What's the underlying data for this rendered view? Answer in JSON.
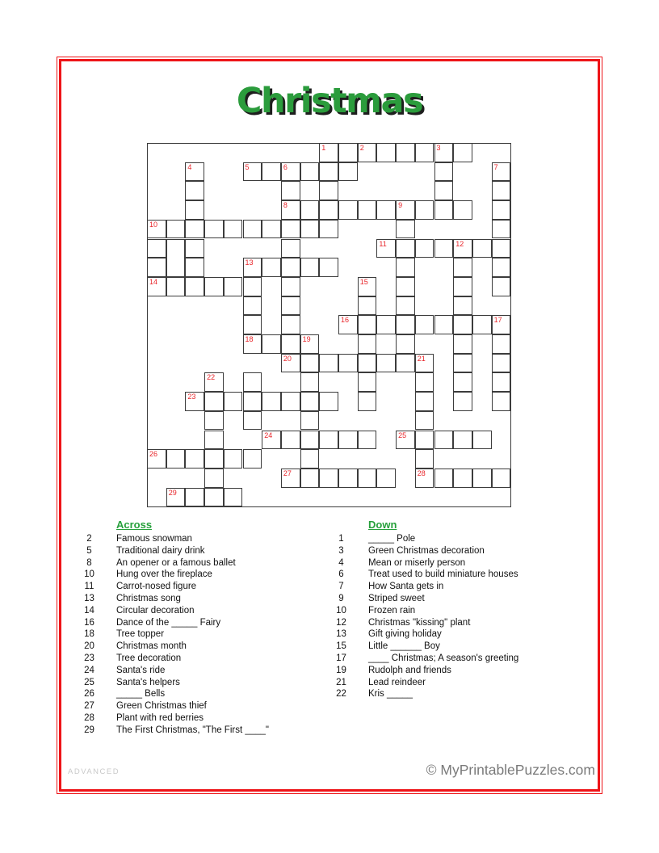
{
  "title": "Christmas",
  "colors": {
    "frame_red": "#ee1418",
    "title_green": "#2b9c3c",
    "heading_green": "#27a03c",
    "number_red": "#e8252a",
    "grid_line": "#3c3c3c",
    "level_gray": "#c9c9c9",
    "copyright_gray": "#7a7a7a"
  },
  "grid": {
    "rows": 19,
    "cols": 19,
    "filled": [
      [
        9,
        10,
        11,
        12,
        13,
        14,
        15,
        16
      ],
      [
        2,
        5,
        6,
        7,
        8,
        9,
        10,
        15,
        18
      ],
      [
        2,
        7,
        9,
        15,
        18
      ],
      [
        2,
        7,
        8,
        9,
        10,
        11,
        12,
        13,
        14,
        15,
        16,
        18
      ],
      [
        0,
        1,
        2,
        3,
        4,
        5,
        6,
        7,
        8,
        9,
        13,
        18
      ],
      [
        0,
        2,
        7,
        12,
        13,
        14,
        15,
        16,
        17,
        18
      ],
      [
        0,
        2,
        5,
        6,
        7,
        8,
        9,
        13,
        16,
        18
      ],
      [
        0,
        1,
        2,
        3,
        4,
        5,
        7,
        11,
        13,
        16,
        18
      ],
      [
        5,
        7,
        11,
        13,
        16
      ],
      [
        5,
        7,
        10,
        11,
        12,
        13,
        14,
        15,
        16,
        17,
        18
      ],
      [
        5,
        6,
        7,
        8,
        11,
        13,
        16,
        18
      ],
      [
        7,
        8,
        9,
        10,
        11,
        12,
        13,
        14,
        16,
        18
      ],
      [
        3,
        5,
        8,
        11,
        14,
        16,
        18
      ],
      [
        2,
        3,
        4,
        5,
        6,
        7,
        8,
        9,
        11,
        14,
        16,
        18
      ],
      [
        3,
        5,
        8,
        14
      ],
      [
        3,
        6,
        7,
        8,
        9,
        10,
        11,
        13,
        14,
        15,
        16,
        17
      ],
      [
        0,
        1,
        2,
        3,
        4,
        5,
        8,
        14
      ],
      [
        3,
        7,
        8,
        9,
        10,
        11,
        12,
        14,
        15,
        16,
        17,
        18
      ],
      [
        1,
        2,
        3,
        4
      ]
    ],
    "merged": [
      {
        "r": 5,
        "c": 1,
        "rowspan": 2
      }
    ],
    "numbers": [
      {
        "n": "1",
        "r": 0,
        "c": 9
      },
      {
        "n": "2",
        "r": 0,
        "c": 11
      },
      {
        "n": "3",
        "r": 0,
        "c": 15
      },
      {
        "n": "4",
        "r": 1,
        "c": 2
      },
      {
        "n": "5",
        "r": 1,
        "c": 5
      },
      {
        "n": "6",
        "r": 1,
        "c": 7
      },
      {
        "n": "7",
        "r": 1,
        "c": 18
      },
      {
        "n": "8",
        "r": 3,
        "c": 7
      },
      {
        "n": "9",
        "r": 3,
        "c": 13
      },
      {
        "n": "10",
        "r": 4,
        "c": 0
      },
      {
        "n": "11",
        "r": 5,
        "c": 12
      },
      {
        "n": "12",
        "r": 5,
        "c": 16
      },
      {
        "n": "13",
        "r": 6,
        "c": 5
      },
      {
        "n": "14",
        "r": 7,
        "c": 0
      },
      {
        "n": "15",
        "r": 7,
        "c": 11
      },
      {
        "n": "16",
        "r": 9,
        "c": 10
      },
      {
        "n": "17",
        "r": 9,
        "c": 18
      },
      {
        "n": "18",
        "r": 10,
        "c": 5
      },
      {
        "n": "19",
        "r": 10,
        "c": 8
      },
      {
        "n": "20",
        "r": 11,
        "c": 7
      },
      {
        "n": "21",
        "r": 11,
        "c": 14
      },
      {
        "n": "22",
        "r": 12,
        "c": 3
      },
      {
        "n": "23",
        "r": 13,
        "c": 2
      },
      {
        "n": "24",
        "r": 15,
        "c": 6
      },
      {
        "n": "25",
        "r": 15,
        "c": 13
      },
      {
        "n": "26",
        "r": 16,
        "c": 0
      },
      {
        "n": "27",
        "r": 17,
        "c": 7
      },
      {
        "n": "28",
        "r": 17,
        "c": 14
      },
      {
        "n": "29",
        "r": 18,
        "c": 1
      }
    ]
  },
  "clues": {
    "across": {
      "heading": "Across",
      "items": [
        [
          "2",
          "Famous snowman"
        ],
        [
          "5",
          "Traditional dairy drink"
        ],
        [
          "8",
          "An opener or a famous ballet"
        ],
        [
          "10",
          "Hung over the fireplace"
        ],
        [
          "11",
          "Carrot-nosed figure"
        ],
        [
          "13",
          "Christmas song"
        ],
        [
          "14",
          "Circular decoration"
        ],
        [
          "16",
          "Dance of the _____ Fairy"
        ],
        [
          "18",
          "Tree topper"
        ],
        [
          "20",
          "Christmas month"
        ],
        [
          "23",
          "Tree decoration"
        ],
        [
          "24",
          "Santa's ride"
        ],
        [
          "25",
          "Santa's helpers"
        ],
        [
          "26",
          "_____ Bells"
        ],
        [
          "27",
          "Green Christmas thief"
        ],
        [
          "28",
          "Plant with red berries"
        ],
        [
          "29",
          "The First Christmas, \"The First ____\""
        ]
      ]
    },
    "down": {
      "heading": "Down",
      "items": [
        [
          "1",
          "_____ Pole"
        ],
        [
          "3",
          "Green Christmas decoration"
        ],
        [
          "4",
          "Mean or miserly person"
        ],
        [
          "6",
          "Treat used to build miniature houses"
        ],
        [
          "7",
          "How Santa gets in"
        ],
        [
          "9",
          "Striped sweet"
        ],
        [
          "10",
          "Frozen rain"
        ],
        [
          "12",
          "Christmas \"kissing\" plant"
        ],
        [
          "13",
          "Gift giving holiday"
        ],
        [
          "15",
          "Little ______ Boy"
        ],
        [
          "17",
          "____ Christmas; A season's greeting"
        ],
        [
          "19",
          "Rudolph and friends"
        ],
        [
          "21",
          "Lead reindeer"
        ],
        [
          "22",
          "Kris _____"
        ]
      ]
    }
  },
  "footer": {
    "level": "ADVANCED",
    "copyright": "© MyPrintablePuzzles.com"
  }
}
